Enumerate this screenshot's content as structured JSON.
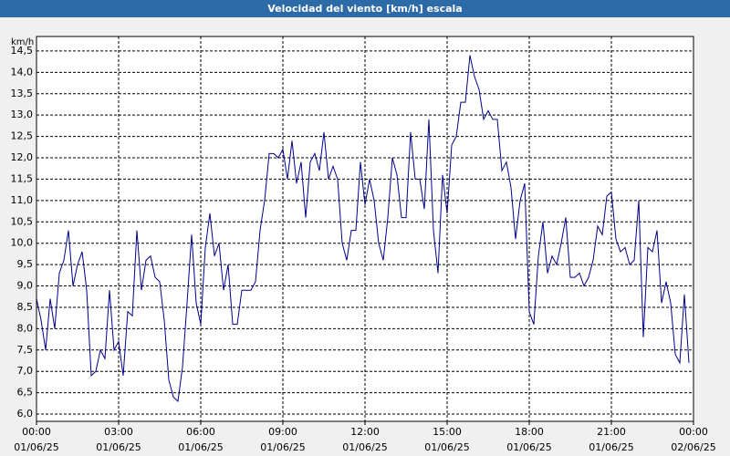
{
  "chart_data": {
    "type": "line",
    "title": "Velocidad del viento [km/h] escala",
    "y_unit": "km/h",
    "x": [
      0,
      10,
      20,
      30,
      40,
      50,
      60,
      70,
      80,
      90,
      100,
      110,
      120,
      130,
      140,
      150,
      160,
      170,
      180,
      190,
      200,
      210,
      220,
      230,
      240,
      250,
      260,
      270,
      280,
      290,
      300,
      310,
      320,
      330,
      340,
      350,
      360,
      370,
      380,
      390,
      400,
      410,
      420,
      430,
      440,
      450,
      460,
      470,
      480,
      490,
      500,
      510,
      520,
      530,
      540,
      550,
      560,
      570,
      580,
      590,
      600,
      610,
      620,
      630,
      640,
      650,
      660,
      670,
      680,
      690,
      700,
      710,
      720,
      730,
      740,
      750,
      760,
      770,
      780,
      790,
      800,
      810,
      820,
      830,
      840,
      850,
      860,
      870,
      880,
      890,
      900,
      910,
      920,
      930,
      940,
      950,
      960,
      970,
      980,
      990,
      1000,
      1010,
      1020,
      1030,
      1040,
      1050,
      1060,
      1070,
      1080,
      1090,
      1100,
      1110,
      1120,
      1130,
      1140,
      1150,
      1160,
      1170,
      1180,
      1190,
      1200,
      1210,
      1220,
      1230,
      1240,
      1250,
      1260,
      1270,
      1280,
      1290,
      1300,
      1310,
      1320,
      1330,
      1340,
      1350,
      1360,
      1370,
      1380,
      1390,
      1400,
      1410,
      1420,
      1430
    ],
    "series": [
      {
        "color": "#00008b",
        "values": [
          8.7,
          8.2,
          7.5,
          8.7,
          8.0,
          9.3,
          9.6,
          10.3,
          9.0,
          9.5,
          9.8,
          8.9,
          6.9,
          7.0,
          7.5,
          7.3,
          8.9,
          7.5,
          7.7,
          6.9,
          8.4,
          8.3,
          10.3,
          8.9,
          9.6,
          9.7,
          9.2,
          9.1,
          8.2,
          6.8,
          6.4,
          6.3,
          7.1,
          8.6,
          10.2,
          8.6,
          8.1,
          9.9,
          10.7,
          9.7,
          10.0,
          8.9,
          9.5,
          8.1,
          8.1,
          8.9,
          8.9,
          8.9,
          9.1,
          10.3,
          11.0,
          12.1,
          12.1,
          12.0,
          12.2,
          11.5,
          12.4,
          11.4,
          11.9,
          10.6,
          11.9,
          12.1,
          11.7,
          12.6,
          11.5,
          11.8,
          11.5,
          10.0,
          9.6,
          10.3,
          10.3,
          11.9,
          10.9,
          11.5,
          11.0,
          10.0,
          9.6,
          10.6,
          12.0,
          11.6,
          10.6,
          10.6,
          12.6,
          11.5,
          11.5,
          10.8,
          12.9,
          10.3,
          9.3,
          11.6,
          10.7,
          12.3,
          12.5,
          13.3,
          13.3,
          14.4,
          13.9,
          13.6,
          12.9,
          13.1,
          12.9,
          12.9,
          11.7,
          11.9,
          11.3,
          10.1,
          11.0,
          11.4,
          8.4,
          8.1,
          9.7,
          10.5,
          9.3,
          9.7,
          9.5,
          10.0,
          10.6,
          9.2,
          9.2,
          9.3,
          9.0,
          9.2,
          9.6,
          10.4,
          10.2,
          11.1,
          11.2,
          10.1,
          9.8,
          9.9,
          9.5,
          9.6,
          11.0,
          7.8,
          9.9,
          9.8,
          10.3,
          8.6,
          9.1,
          8.6,
          7.4,
          7.2,
          8.8,
          7.2
        ]
      }
    ],
    "xlim": [
      0,
      1440
    ],
    "xticks": [
      {
        "value": 0,
        "label": "00:00"
      },
      {
        "value": 180,
        "label": "03:00"
      },
      {
        "value": 360,
        "label": "06:00"
      },
      {
        "value": 540,
        "label": "09:00"
      },
      {
        "value": 720,
        "label": "12:00"
      },
      {
        "value": 900,
        "label": "15:00"
      },
      {
        "value": 1080,
        "label": "18:00"
      },
      {
        "value": 1260,
        "label": "21:00"
      },
      {
        "value": 1440,
        "label": "00:00"
      }
    ],
    "xtick_dates": [
      "01/06/25",
      "01/06/25",
      "01/06/25",
      "01/06/25",
      "01/06/25",
      "01/06/25",
      "01/06/25",
      "01/06/25",
      "02/06/25"
    ],
    "ylim": [
      5.83,
      14.84
    ],
    "yticks": [
      {
        "value": 6,
        "label": "6,0"
      },
      {
        "value": 6.5,
        "label": "6,5"
      },
      {
        "value": 7,
        "label": "7,0"
      },
      {
        "value": 7.5,
        "label": "7,5"
      },
      {
        "value": 8,
        "label": "8,0"
      },
      {
        "value": 8.5,
        "label": "8,5"
      },
      {
        "value": 9,
        "label": "9,0"
      },
      {
        "value": 9.5,
        "label": "9,5"
      },
      {
        "value": 10,
        "label": "10,0"
      },
      {
        "value": 10.5,
        "label": "10,5"
      },
      {
        "value": 11,
        "label": "11,0"
      },
      {
        "value": 11.5,
        "label": "11,5"
      },
      {
        "value": 12,
        "label": "12,0"
      },
      {
        "value": 12.5,
        "label": "12,5"
      },
      {
        "value": 13,
        "label": "13,0"
      },
      {
        "value": 13.5,
        "label": "13,5"
      },
      {
        "value": 14,
        "label": "14,0"
      },
      {
        "value": 14.5,
        "label": "14,5"
      }
    ],
    "grid": true
  }
}
